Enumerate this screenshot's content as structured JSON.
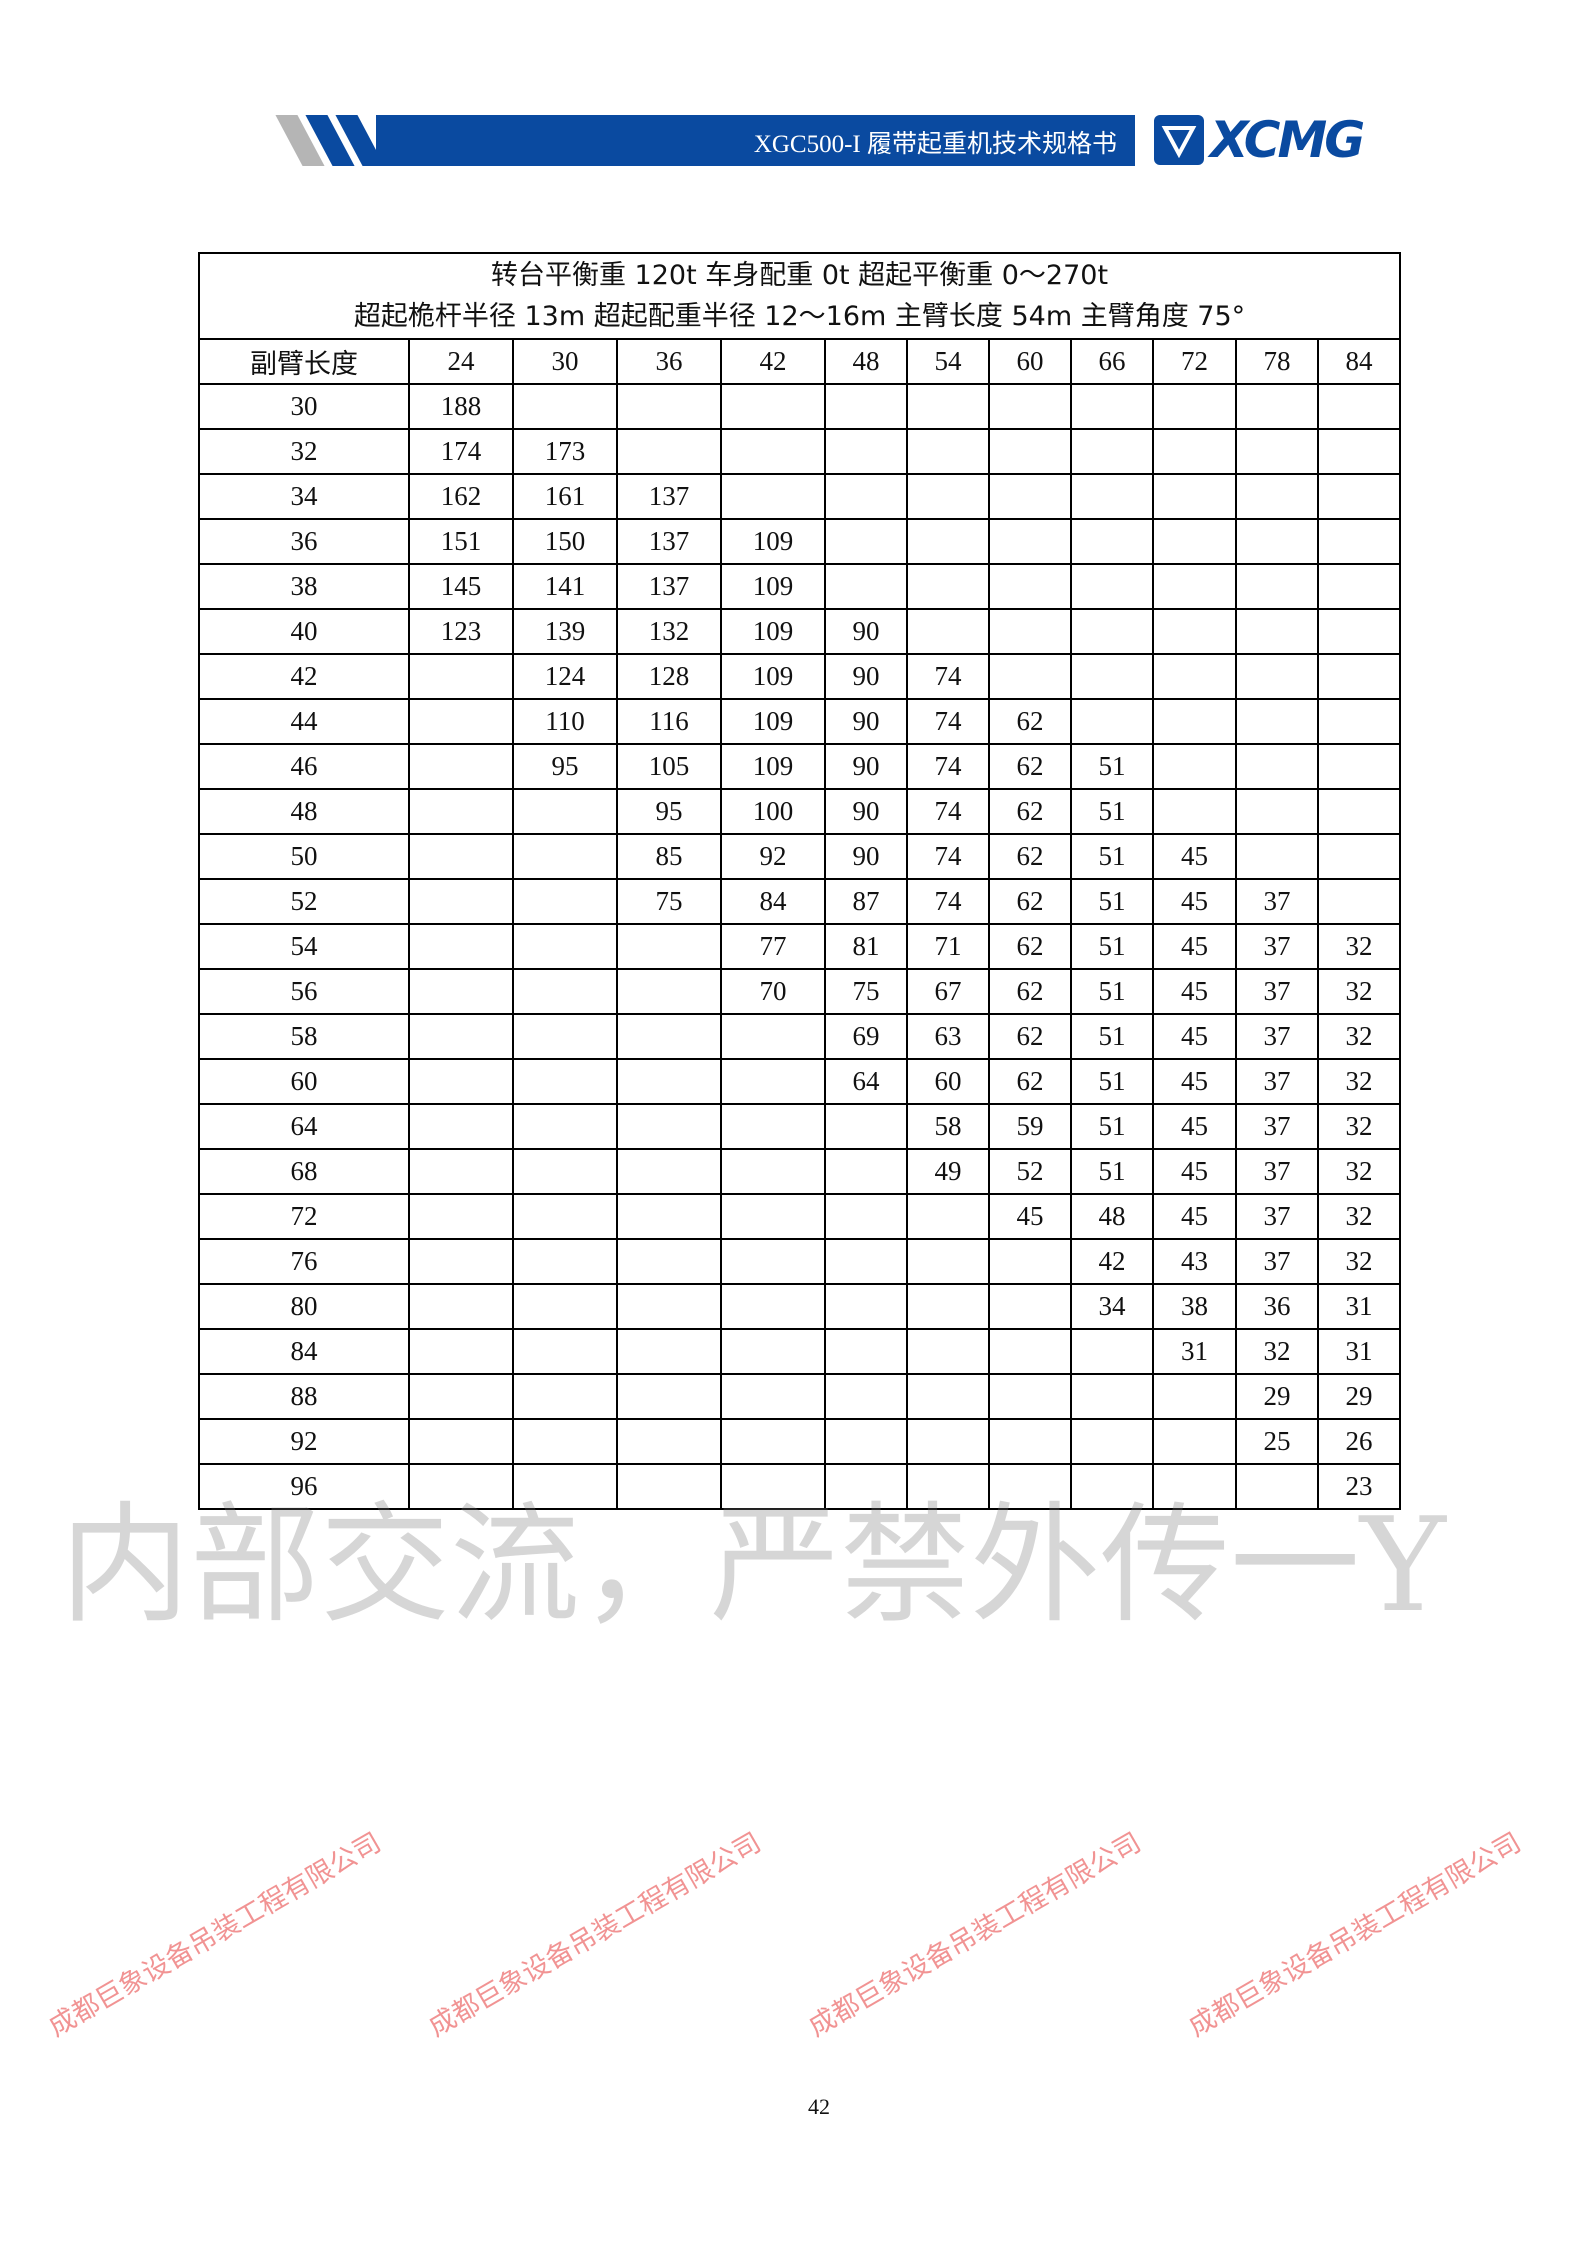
{
  "header": {
    "doc_title": "XGC500-I 履带起重机技术规格书",
    "logo_text": "XCMG",
    "brand_color": "#0a4aa0"
  },
  "table": {
    "title_line1": "转台平衡重  120t  车身配重 0t    超起平衡重  0～270t",
    "title_line2": "超起桅杆半径 13m   超起配重半径  12～16m    主臂长度 54m  主臂角度 75°",
    "corner_label": "副臂长度",
    "columns": [
      "24",
      "30",
      "36",
      "42",
      "48",
      "54",
      "60",
      "66",
      "72",
      "78",
      "84"
    ],
    "rows": [
      {
        "radius": "30",
        "values": [
          "188",
          "",
          "",
          "",
          "",
          "",
          "",
          "",
          "",
          "",
          ""
        ]
      },
      {
        "radius": "32",
        "values": [
          "174",
          "173",
          "",
          "",
          "",
          "",
          "",
          "",
          "",
          "",
          ""
        ]
      },
      {
        "radius": "34",
        "values": [
          "162",
          "161",
          "137",
          "",
          "",
          "",
          "",
          "",
          "",
          "",
          ""
        ]
      },
      {
        "radius": "36",
        "values": [
          "151",
          "150",
          "137",
          "109",
          "",
          "",
          "",
          "",
          "",
          "",
          ""
        ]
      },
      {
        "radius": "38",
        "values": [
          "145",
          "141",
          "137",
          "109",
          "",
          "",
          "",
          "",
          "",
          "",
          ""
        ]
      },
      {
        "radius": "40",
        "values": [
          "123",
          "139",
          "132",
          "109",
          "90",
          "",
          "",
          "",
          "",
          "",
          ""
        ]
      },
      {
        "radius": "42",
        "values": [
          "",
          "124",
          "128",
          "109",
          "90",
          "74",
          "",
          "",
          "",
          "",
          ""
        ]
      },
      {
        "radius": "44",
        "values": [
          "",
          "110",
          "116",
          "109",
          "90",
          "74",
          "62",
          "",
          "",
          "",
          ""
        ]
      },
      {
        "radius": "46",
        "values": [
          "",
          "95",
          "105",
          "109",
          "90",
          "74",
          "62",
          "51",
          "",
          "",
          ""
        ]
      },
      {
        "radius": "48",
        "values": [
          "",
          "",
          "95",
          "100",
          "90",
          "74",
          "62",
          "51",
          "",
          "",
          ""
        ]
      },
      {
        "radius": "50",
        "values": [
          "",
          "",
          "85",
          "92",
          "90",
          "74",
          "62",
          "51",
          "45",
          "",
          ""
        ]
      },
      {
        "radius": "52",
        "values": [
          "",
          "",
          "75",
          "84",
          "87",
          "74",
          "62",
          "51",
          "45",
          "37",
          ""
        ]
      },
      {
        "radius": "54",
        "values": [
          "",
          "",
          "",
          "77",
          "81",
          "71",
          "62",
          "51",
          "45",
          "37",
          "32"
        ]
      },
      {
        "radius": "56",
        "values": [
          "",
          "",
          "",
          "70",
          "75",
          "67",
          "62",
          "51",
          "45",
          "37",
          "32"
        ]
      },
      {
        "radius": "58",
        "values": [
          "",
          "",
          "",
          "",
          "69",
          "63",
          "62",
          "51",
          "45",
          "37",
          "32"
        ]
      },
      {
        "radius": "60",
        "values": [
          "",
          "",
          "",
          "",
          "64",
          "60",
          "62",
          "51",
          "45",
          "37",
          "32"
        ]
      },
      {
        "radius": "64",
        "values": [
          "",
          "",
          "",
          "",
          "",
          "58",
          "59",
          "51",
          "45",
          "37",
          "32"
        ]
      },
      {
        "radius": "68",
        "values": [
          "",
          "",
          "",
          "",
          "",
          "49",
          "52",
          "51",
          "45",
          "37",
          "32"
        ]
      },
      {
        "radius": "72",
        "values": [
          "",
          "",
          "",
          "",
          "",
          "",
          "45",
          "48",
          "45",
          "37",
          "32"
        ]
      },
      {
        "radius": "76",
        "values": [
          "",
          "",
          "",
          "",
          "",
          "",
          "",
          "42",
          "43",
          "37",
          "32"
        ]
      },
      {
        "radius": "80",
        "values": [
          "",
          "",
          "",
          "",
          "",
          "",
          "",
          "34",
          "38",
          "36",
          "31"
        ]
      },
      {
        "radius": "84",
        "values": [
          "",
          "",
          "",
          "",
          "",
          "",
          "",
          "",
          "31",
          "32",
          "31"
        ]
      },
      {
        "radius": "88",
        "values": [
          "",
          "",
          "",
          "",
          "",
          "",
          "",
          "",
          "",
          "29",
          "29"
        ]
      },
      {
        "radius": "92",
        "values": [
          "",
          "",
          "",
          "",
          "",
          "",
          "",
          "",
          "",
          "25",
          "26"
        ]
      },
      {
        "radius": "96",
        "values": [
          "",
          "",
          "",
          "",
          "",
          "",
          "",
          "",
          "",
          "",
          "23"
        ]
      }
    ]
  },
  "page_number": "42",
  "watermarks": {
    "company": "成都巨象设备吊装工程有限公司",
    "handwritten": "内部交流，严禁外传一Y",
    "company_color": "#e63c3c"
  }
}
